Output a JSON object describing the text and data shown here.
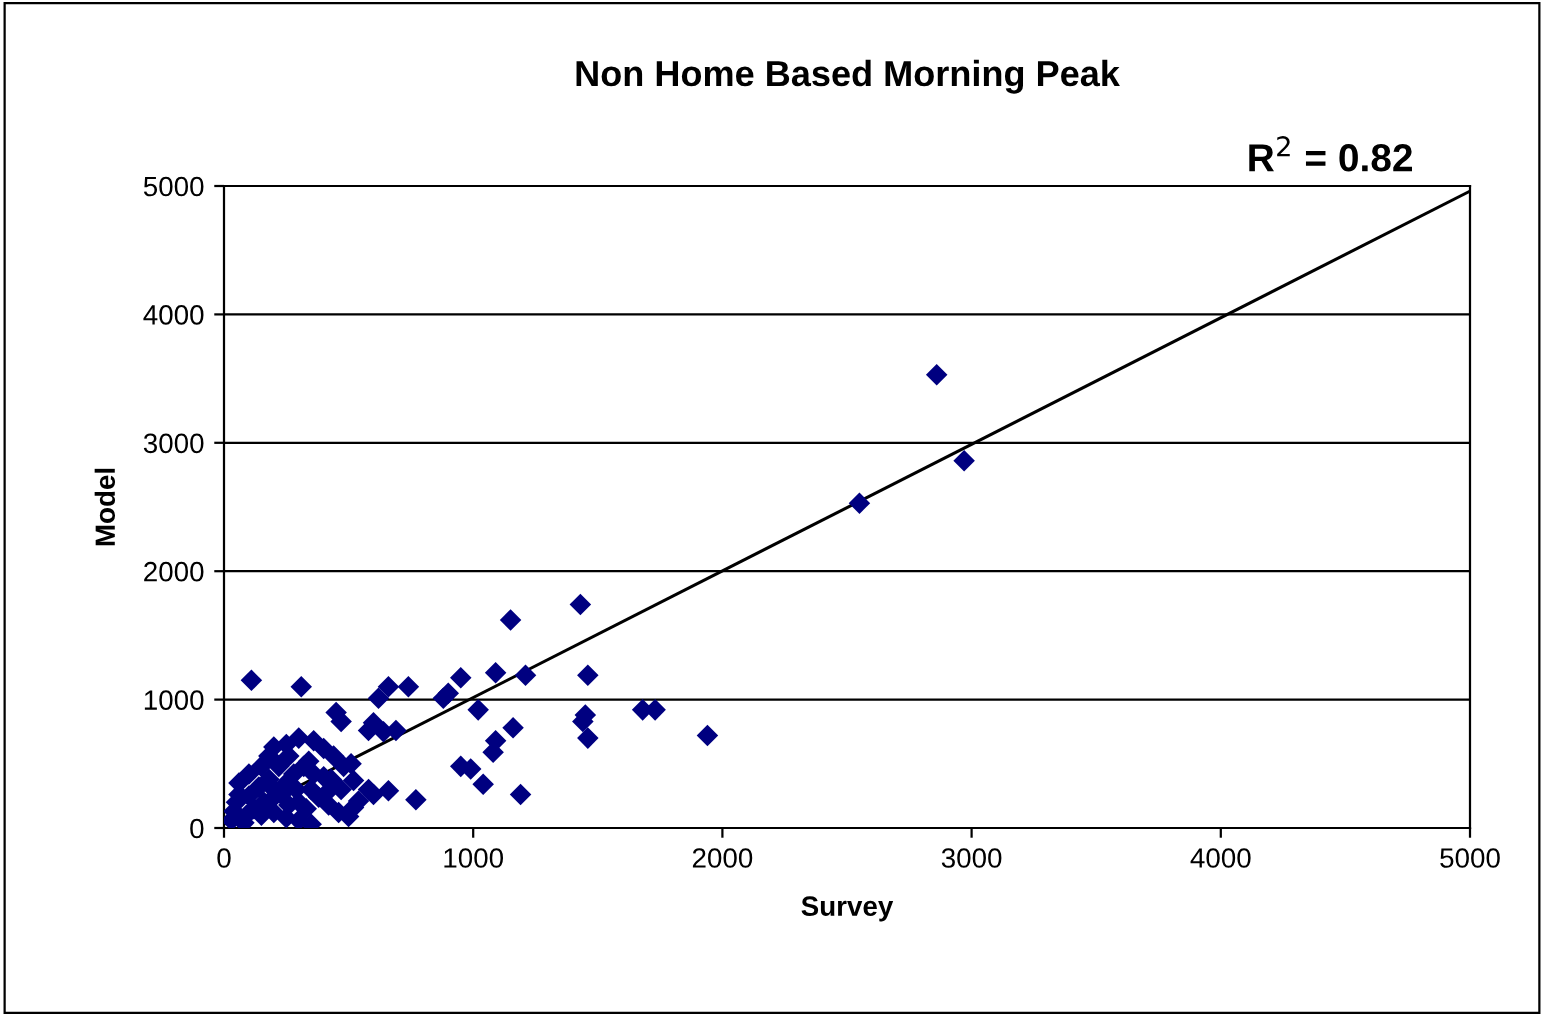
{
  "chart_data": {
    "type": "scatter",
    "title": "Non Home Based Morning Peak",
    "xlabel": "Survey",
    "ylabel": "Model",
    "annotations": [
      "R$^{2}$ = 0.82"
    ],
    "xlim": [
      0,
      5000
    ],
    "ylim": [
      0,
      5000
    ],
    "xticks": [
      0,
      1000,
      2000,
      3000,
      4000,
      5000
    ],
    "yticks": [
      0,
      1000,
      2000,
      3000,
      4000,
      5000
    ],
    "grid": "y",
    "marker": "diamond",
    "legend": false,
    "series": [
      {
        "color": "#000080",
        "x": [
          2860,
          2970,
          2550,
          1430,
          1150,
          1460,
          1210,
          1090,
          950,
          900,
          880,
          1020,
          1160,
          1090,
          1080,
          1040,
          1190,
          1450,
          1440,
          1460,
          1680,
          1730,
          1940,
          950,
          990,
          770,
          740,
          660,
          620,
          600,
          580,
          640,
          690,
          660,
          600,
          580,
          520,
          110,
          310,
          450,
          470,
          360,
          400,
          440,
          480,
          300,
          250,
          200,
          180,
          150,
          100,
          60,
          60,
          40,
          30,
          80,
          150,
          200,
          250,
          300,
          350,
          380,
          420,
          460,
          500,
          520,
          200,
          250,
          280,
          320,
          340,
          230,
          160,
          120,
          300,
          350,
          400,
          430,
          220,
          260,
          180,
          140,
          100,
          50,
          90,
          260,
          330,
          360,
          290,
          190,
          510,
          470,
          410,
          540
        ],
        "values": [
          3530,
          2860,
          2530,
          1740,
          1620,
          1190,
          1190,
          1210,
          1170,
          1050,
          1010,
          920,
          780,
          680,
          590,
          340,
          260,
          880,
          830,
          700,
          920,
          920,
          720,
          480,
          460,
          220,
          1100,
          1100,
          1010,
          820,
          760,
          750,
          760,
          290,
          260,
          300,
          370,
          1150,
          1100,
          900,
          830,
          680,
          620,
          560,
          480,
          700,
          650,
          630,
          560,
          480,
          420,
          350,
          260,
          130,
          60,
          40,
          100,
          120,
          80,
          60,
          30,
          240,
          180,
          120,
          90,
          160,
          300,
          350,
          420,
          480,
          520,
          260,
          200,
          150,
          200,
          300,
          400,
          380,
          480,
          560,
          380,
          320,
          250,
          200,
          100,
          180,
          150,
          420,
          300,
          220,
          500,
          300,
          270,
          210
        ]
      },
      {
        "type": "line",
        "color": "#000000",
        "marker": "none",
        "x": [
          0,
          5000
        ],
        "values": [
          30,
          4960
        ]
      }
    ]
  }
}
